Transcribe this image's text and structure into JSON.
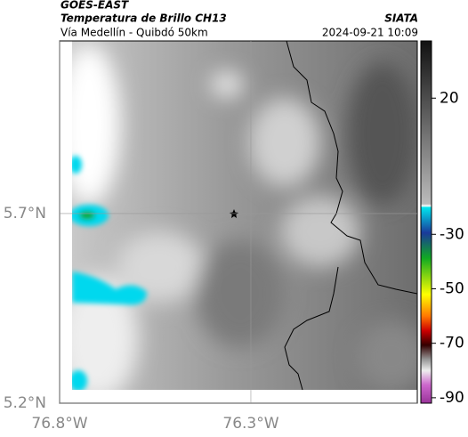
{
  "header": {
    "satellite": "GOES-EAST",
    "title": "Temperatura de Brillo CH13",
    "subtitle": "Vía Medellín - Quibdó 50km",
    "source": "SIATA",
    "datetime": "2024-09-21 10:09"
  },
  "map": {
    "xlim": [
      -76.8,
      -75.865
    ],
    "ylim": [
      5.2,
      6.155
    ],
    "xticks": [
      {
        "value": -76.8,
        "label": "76.8°W"
      },
      {
        "value": -76.3,
        "label": "76.3°W"
      }
    ],
    "yticks": [
      {
        "value": 5.2,
        "label": "5.2°N"
      },
      {
        "value": 5.7,
        "label": "5.7°N"
      }
    ]
  },
  "colorbar": {
    "lim": [
      -92,
      41
    ],
    "ticks": [
      20,
      -30,
      -50,
      -70,
      -90
    ]
  }
}
